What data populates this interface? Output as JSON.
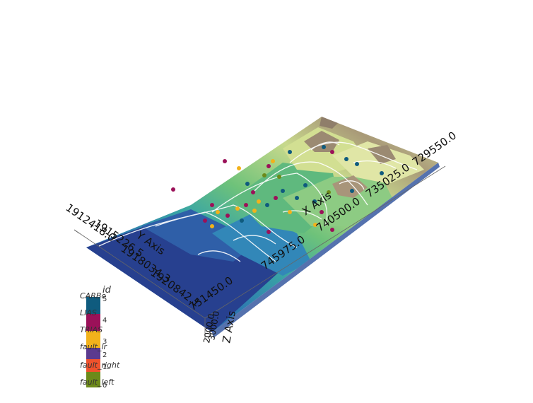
{
  "scene": {
    "axes": {
      "x_axis_title": "X Axis",
      "y_axis_title": "Y Axis",
      "z_axis_title": "Z Axis",
      "x_ticks": [
        "729550.0",
        "735025.0",
        "740500.0",
        "745975.0",
        "751450.0"
      ],
      "y_ticks": [
        "1912418.0",
        "1915226.5",
        "1918034.3",
        "1920842.1"
      ],
      "z_ticks": [
        "2000.0",
        "3000.0"
      ]
    },
    "legend": {
      "title": "id",
      "entries": [
        {
          "label": "CARBo",
          "number": "5",
          "color": "#0f5b7e"
        },
        {
          "label": "LIAS",
          "number": "4",
          "color": "#9b1159"
        },
        {
          "label": "TRIAS",
          "number": "3",
          "color": "#f2b21b"
        },
        {
          "label": "fault_lr",
          "number": "2",
          "color": "#5b3a8f"
        },
        {
          "label": "fault_right",
          "number": "1",
          "color": "#f0522c"
        },
        {
          "label": "fault_left",
          "number": "0",
          "color": "#6d8a1a"
        }
      ]
    },
    "colors": {
      "low": "#253a8e",
      "mid_low": "#2a8fb8",
      "mid": "#4fb07a",
      "high": "#c9d88a",
      "peak": "#9a8870",
      "contour": "#ffffff"
    }
  }
}
